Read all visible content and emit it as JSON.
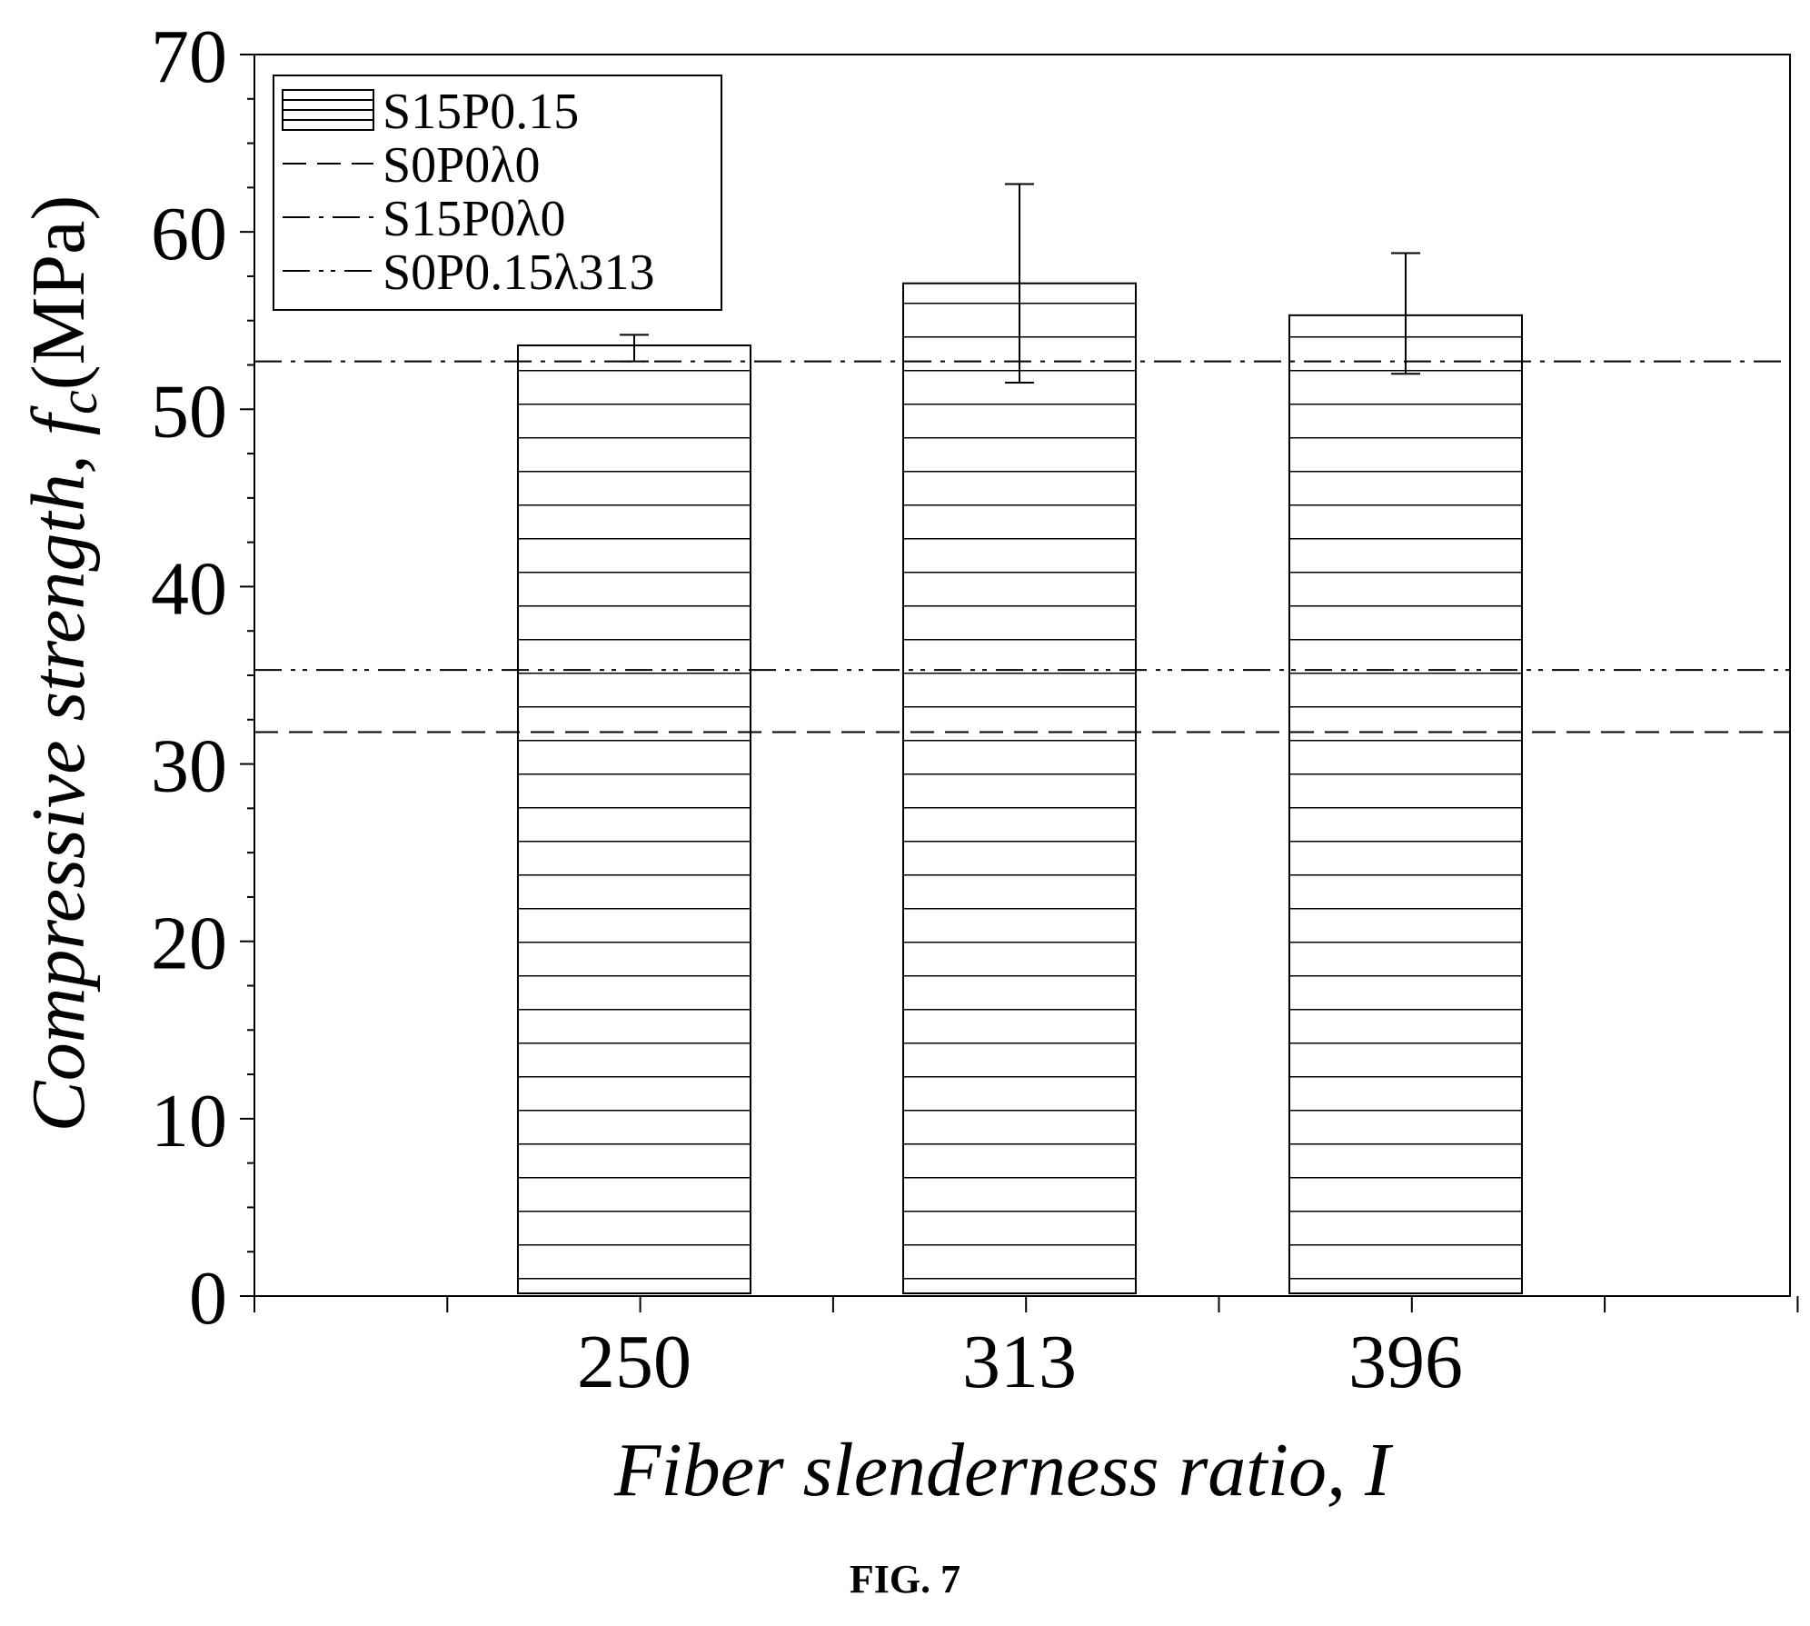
{
  "figure": {
    "caption": "FIG. 7"
  },
  "chart_data": {
    "type": "bar",
    "xlabel": "Fiber slenderness ratio, I",
    "ylabel": "Compressive strength, f_c(MPa)",
    "categories": [
      "250",
      "313",
      "396"
    ],
    "ylim": [
      0,
      70
    ],
    "yticks": [
      0,
      10,
      20,
      30,
      40,
      50,
      60,
      70
    ],
    "ytick_labels": [
      "0",
      "10",
      "20",
      "30",
      "40",
      "50",
      "60",
      "70"
    ],
    "grid": false,
    "legend_position": "top-left",
    "series": [
      {
        "name": "S15P0.15",
        "values": [
          53.6,
          57.1,
          55.3
        ],
        "error_high": [
          54.2,
          62.7,
          58.8
        ],
        "error_low": [
          52.7,
          51.5,
          52.0
        ],
        "pattern": "horizontal-lines"
      }
    ],
    "reference_lines": [
      {
        "name": "S0P0λ0",
        "value": 31.8,
        "style": "dashed"
      },
      {
        "name": "S15P0λ0",
        "value": 52.7,
        "style": "dash-dot"
      },
      {
        "name": "S0P0.15λ313",
        "value": 35.3,
        "style": "dash-dot-dot"
      }
    ],
    "colors": {
      "line": "#000000",
      "bar_fill": "#ffffff",
      "background": "#ffffff"
    }
  }
}
